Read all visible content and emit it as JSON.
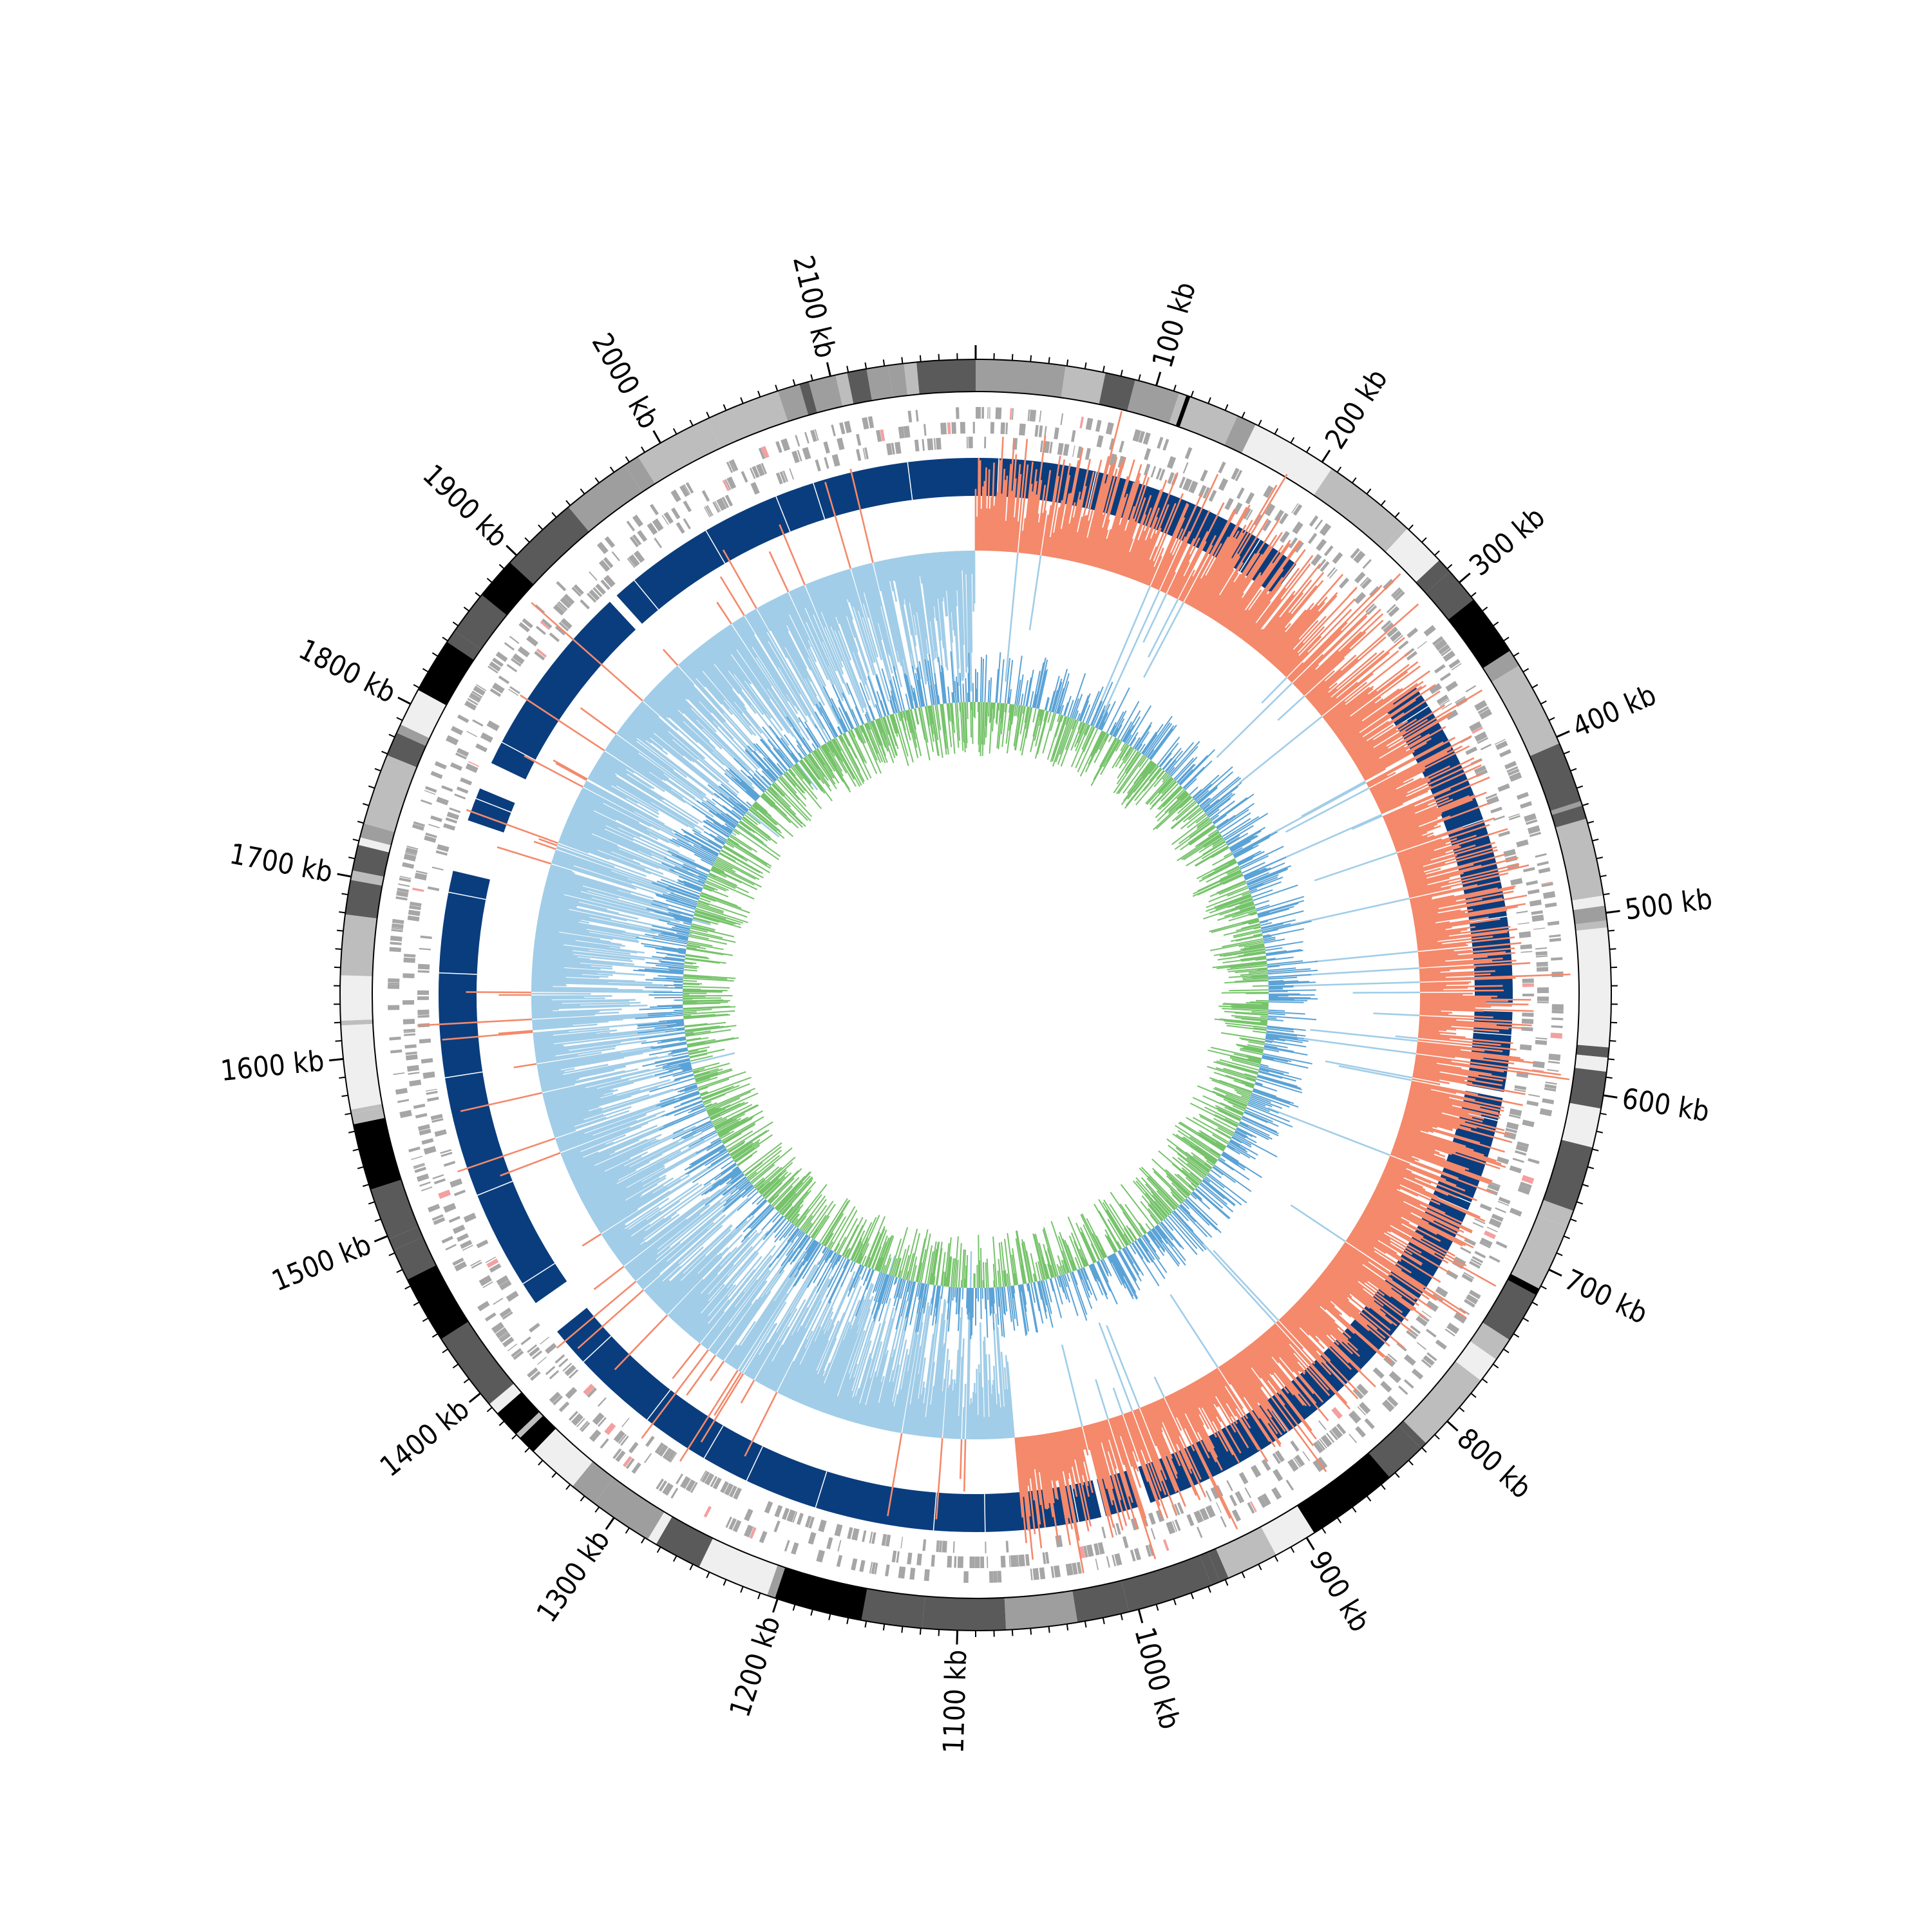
{
  "chart_data": {
    "type": "circular-genome-map",
    "unit": "kb",
    "genome_length_kb": 2180,
    "start_position": "top",
    "direction": "clockwise",
    "major_tick_labels": [
      "100 kb",
      "200 kb",
      "300 kb",
      "400 kb",
      "500 kb",
      "600 kb",
      "700 kb",
      "800 kb",
      "900 kb",
      "1000 kb",
      "1100 kb",
      "1200 kb",
      "1300 kb",
      "1400 kb",
      "1500 kb",
      "1600 kb",
      "1700 kb",
      "1800 kb",
      "1900 kb",
      "2000 kb",
      "2100 kb"
    ],
    "major_ticks_kb": [
      100,
      200,
      300,
      400,
      500,
      600,
      700,
      800,
      900,
      1000,
      1100,
      1200,
      1300,
      1400,
      1500,
      1600,
      1700,
      1800,
      1900,
      2000,
      2100
    ],
    "minor_tick_step_kb": 10,
    "tracks": [
      {
        "name": "karyotype",
        "kind": "bands",
        "colors": [
          "#000000",
          "#5a5a5a",
          "#9e9e9e",
          "#bdbdbd",
          "#efefef"
        ]
      },
      {
        "name": "genes",
        "kind": "features",
        "color": "#a6a6a6",
        "highlight_color": "#f4a0a0"
      },
      {
        "name": "homology",
        "kind": "blocks",
        "color": "#0a3d7d",
        "segments_kb": [
          [
            0,
            222
          ],
          [
            333,
            550
          ],
          [
            556,
            608
          ],
          [
            612,
            688
          ],
          [
            690,
            975
          ],
          [
            982,
            1005
          ],
          [
            1008,
            1400
          ],
          [
            1423,
            1716
          ],
          [
            1750,
            1772
          ],
          [
            1790,
            1920
          ],
          [
            1926,
            2180
          ]
        ]
      },
      {
        "name": "gc_skew",
        "kind": "histogram",
        "positive_color": "#f4896b",
        "negative_color": "#a1cde8"
      },
      {
        "name": "gc_content",
        "kind": "line",
        "colors": [
          "#76c36b",
          "#5ba3d6"
        ]
      }
    ]
  }
}
